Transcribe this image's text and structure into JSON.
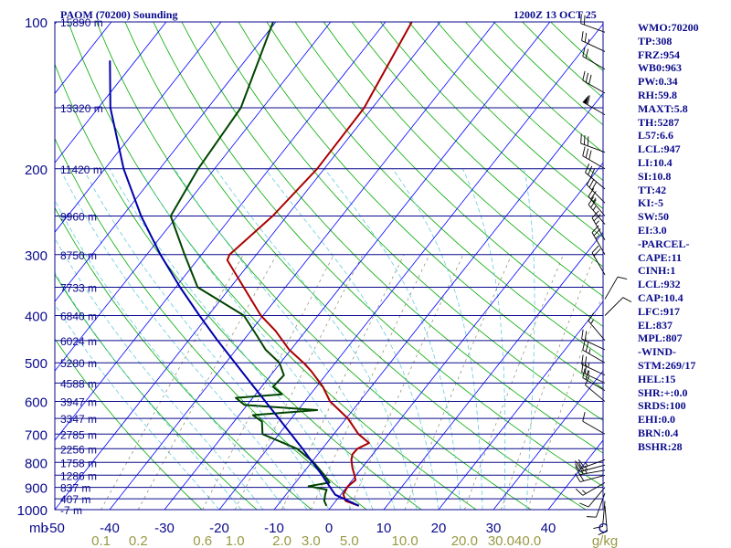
{
  "header": {
    "title": "PAOM (70200) Sounding",
    "time": "1200Z 13 OCT 25"
  },
  "indices": [
    "WMO:70200",
    "TP:308",
    "FRZ:954",
    "WB0:963",
    "PW:0.34",
    "RH:59.8",
    "MAXT:5.8",
    "TH:5287",
    "L57:6.6",
    "LCL:947",
    "LI:10.4",
    "SI:10.8",
    "TT:42",
    "KI:-5",
    "SW:50",
    "EI:3.0",
    "-PARCEL-",
    "CAPE:11",
    "CINH:1",
    "LCL:932",
    "CAP:10.4",
    "LFC:917",
    "EL:837",
    "MPL:807",
    "-WIND-",
    "STM:269/17",
    "HEL:15",
    "SHR:+:0.0",
    "SRDS:100",
    "EHI:0.0",
    "BRN:0.4",
    "BSHR:28"
  ],
  "colors": {
    "isobar": "#0a0a8c",
    "isotherm": "#0000ff",
    "dry_adiabat": "#00aa00",
    "moist_adiabat": "#66ccdd",
    "mixing_ratio": "#888866",
    "temperature": "#aa0000",
    "dewpoint": "#004400",
    "parcel": "#0000aa",
    "label": "#0a0a8c",
    "mix_label": "#999944",
    "wind": "#000000"
  },
  "chart_data": {
    "type": "line",
    "diagram": "skew-t log-p",
    "y_axis_unit": "mb",
    "x_axis_unit": "C",
    "mixing_ratio_unit": "g/kg",
    "pressure_range": [
      1000,
      100
    ],
    "temperature_range": [
      -50,
      50
    ],
    "pressure_ticks": [
      100,
      200,
      300,
      400,
      500,
      600,
      700,
      800,
      900,
      1000
    ],
    "temperature_ticks": [
      -50,
      -40,
      -30,
      -20,
      -10,
      0,
      10,
      20,
      30,
      40
    ],
    "mixing_ratio_ticks": [
      "0.1",
      "0.2",
      "0.6",
      "1.0",
      "2.0",
      "3.0",
      "5.0",
      "10.0",
      "20.0",
      "30.0",
      "40.0"
    ],
    "height_labels": [
      {
        "p": 100,
        "label": "15890 m"
      },
      {
        "p": 150,
        "label": "13320 m"
      },
      {
        "p": 200,
        "label": "11420 m"
      },
      {
        "p": 250,
        "label": "9960 m"
      },
      {
        "p": 300,
        "label": "8750 m"
      },
      {
        "p": 350,
        "label": "7733 m"
      },
      {
        "p": 400,
        "label": "6840 m"
      },
      {
        "p": 450,
        "label": "6024 m"
      },
      {
        "p": 500,
        "label": "5280 m"
      },
      {
        "p": 550,
        "label": "4588 m"
      },
      {
        "p": 600,
        "label": "3947 m"
      },
      {
        "p": 650,
        "label": "3347 m"
      },
      {
        "p": 700,
        "label": "2785 m"
      },
      {
        "p": 750,
        "label": "2256 m"
      },
      {
        "p": 800,
        "label": "1758 m"
      },
      {
        "p": 850,
        "label": "1286 m"
      },
      {
        "p": 900,
        "label": "837 m"
      },
      {
        "p": 950,
        "label": "407 m"
      },
      {
        "p": 1000,
        "label": "-7 m"
      }
    ],
    "series": [
      {
        "key": "temperature",
        "points": [
          {
            "p": 982,
            "t": 4.9
          },
          {
            "p": 960,
            "t": 1.8
          },
          {
            "p": 930,
            "t": 0.4
          },
          {
            "p": 895,
            "t": 0.1
          },
          {
            "p": 870,
            "t": 0.6
          },
          {
            "p": 850,
            "t": -0.3
          },
          {
            "p": 820,
            "t": -1.8
          },
          {
            "p": 790,
            "t": -3.1
          },
          {
            "p": 770,
            "t": -3.7
          },
          {
            "p": 750,
            "t": -3.6
          },
          {
            "p": 730,
            "t": -2.3
          },
          {
            "p": 700,
            "t": -5.5
          },
          {
            "p": 650,
            "t": -9.7
          },
          {
            "p": 600,
            "t": -15.4
          },
          {
            "p": 560,
            "t": -18.8
          },
          {
            "p": 520,
            "t": -23.2
          },
          {
            "p": 500,
            "t": -25.8
          },
          {
            "p": 470,
            "t": -30.3
          },
          {
            "p": 430,
            "t": -35.5
          },
          {
            "p": 400,
            "t": -40.4
          },
          {
            "p": 350,
            "t": -47.6
          },
          {
            "p": 308,
            "t": -54.5
          },
          {
            "p": 300,
            "t": -54.9
          },
          {
            "p": 250,
            "t": -52.6
          },
          {
            "p": 200,
            "t": -51.3
          },
          {
            "p": 150,
            "t": -51.5
          },
          {
            "p": 100,
            "t": -55.2
          }
        ]
      },
      {
        "key": "dewpoint",
        "points": [
          {
            "p": 982,
            "t": -1.0
          },
          {
            "p": 960,
            "t": -2.1
          },
          {
            "p": 930,
            "t": -2.9
          },
          {
            "p": 910,
            "t": -3.3
          },
          {
            "p": 895,
            "t": -7.1
          },
          {
            "p": 880,
            "t": -3.8
          },
          {
            "p": 850,
            "t": -5.8
          },
          {
            "p": 800,
            "t": -9.6
          },
          {
            "p": 750,
            "t": -14.6
          },
          {
            "p": 700,
            "t": -23.0
          },
          {
            "p": 660,
            "t": -24.9
          },
          {
            "p": 640,
            "t": -27.5
          },
          {
            "p": 625,
            "t": -16.5
          },
          {
            "p": 610,
            "t": -30.5
          },
          {
            "p": 590,
            "t": -33.1
          },
          {
            "p": 580,
            "t": -25.2
          },
          {
            "p": 560,
            "t": -27.9
          },
          {
            "p": 530,
            "t": -27.6
          },
          {
            "p": 500,
            "t": -30.2
          },
          {
            "p": 470,
            "t": -34.6
          },
          {
            "p": 440,
            "t": -38.2
          },
          {
            "p": 400,
            "t": -43.5
          },
          {
            "p": 350,
            "t": -56.0
          },
          {
            "p": 300,
            "t": -63.1
          },
          {
            "p": 250,
            "t": -71.2
          },
          {
            "p": 200,
            "t": -73.0
          },
          {
            "p": 150,
            "t": -74.0
          },
          {
            "p": 100,
            "t": -80.5
          }
        ]
      },
      {
        "key": "parcel",
        "points": [
          {
            "p": 982,
            "t": 4.9
          },
          {
            "p": 932,
            "t": -1.0
          },
          {
            "p": 900,
            "t": -3.0
          },
          {
            "p": 850,
            "t": -6.2
          },
          {
            "p": 800,
            "t": -9.8
          },
          {
            "p": 750,
            "t": -13.6
          },
          {
            "p": 700,
            "t": -17.8
          },
          {
            "p": 650,
            "t": -22.3
          },
          {
            "p": 600,
            "t": -27.2
          },
          {
            "p": 550,
            "t": -32.5
          },
          {
            "p": 500,
            "t": -38.3
          },
          {
            "p": 450,
            "t": -44.7
          },
          {
            "p": 400,
            "t": -51.6
          },
          {
            "p": 350,
            "t": -59.2
          },
          {
            "p": 300,
            "t": -67.5
          },
          {
            "p": 250,
            "t": -76.6
          },
          {
            "p": 200,
            "t": -86.6
          },
          {
            "p": 150,
            "t": -97.8
          },
          {
            "p": 120,
            "t": -104.7
          }
        ]
      }
    ],
    "wind_barbs": [
      {
        "p": 982,
        "dir": 175,
        "spd": 10
      },
      {
        "p": 960,
        "dir": 185,
        "spd": 10
      },
      {
        "p": 925,
        "dir": 200,
        "spd": 10
      },
      {
        "p": 900,
        "dir": 220,
        "spd": 10
      },
      {
        "p": 880,
        "dir": 240,
        "spd": 15
      },
      {
        "p": 850,
        "dir": 255,
        "spd": 20
      },
      {
        "p": 830,
        "dir": 260,
        "spd": 25
      },
      {
        "p": 810,
        "dir": 255,
        "spd": 25
      },
      {
        "p": 790,
        "dir": 250,
        "spd": 25
      },
      {
        "p": 700,
        "dir": 300,
        "spd": 10
      },
      {
        "p": 600,
        "dir": 310,
        "spd": 10
      },
      {
        "p": 570,
        "dir": 300,
        "spd": 20
      },
      {
        "p": 550,
        "dir": 295,
        "spd": 25
      },
      {
        "p": 530,
        "dir": 295,
        "spd": 25
      },
      {
        "p": 500,
        "dir": 300,
        "spd": 25
      },
      {
        "p": 470,
        "dir": 295,
        "spd": 20
      },
      {
        "p": 450,
        "dir": 320,
        "spd": 15
      },
      {
        "p": 400,
        "dir": 45,
        "spd": 10
      },
      {
        "p": 370,
        "dir": 30,
        "spd": 10
      },
      {
        "p": 330,
        "dir": 330,
        "spd": 20
      },
      {
        "p": 300,
        "dir": 330,
        "spd": 25
      },
      {
        "p": 280,
        "dir": 330,
        "spd": 25
      },
      {
        "p": 260,
        "dir": 320,
        "spd": 25
      },
      {
        "p": 250,
        "dir": 320,
        "spd": 25
      },
      {
        "p": 235,
        "dir": 315,
        "spd": 30
      },
      {
        "p": 220,
        "dir": 310,
        "spd": 30
      },
      {
        "p": 200,
        "dir": 300,
        "spd": 30
      },
      {
        "p": 185,
        "dir": 290,
        "spd": 30
      },
      {
        "p": 155,
        "dir": 300,
        "spd": 60
      },
      {
        "p": 140,
        "dir": 300,
        "spd": 30
      },
      {
        "p": 125,
        "dir": 300,
        "spd": 20
      },
      {
        "p": 115,
        "dir": 295,
        "spd": 25
      },
      {
        "p": 105,
        "dir": 290,
        "spd": 20
      }
    ]
  }
}
